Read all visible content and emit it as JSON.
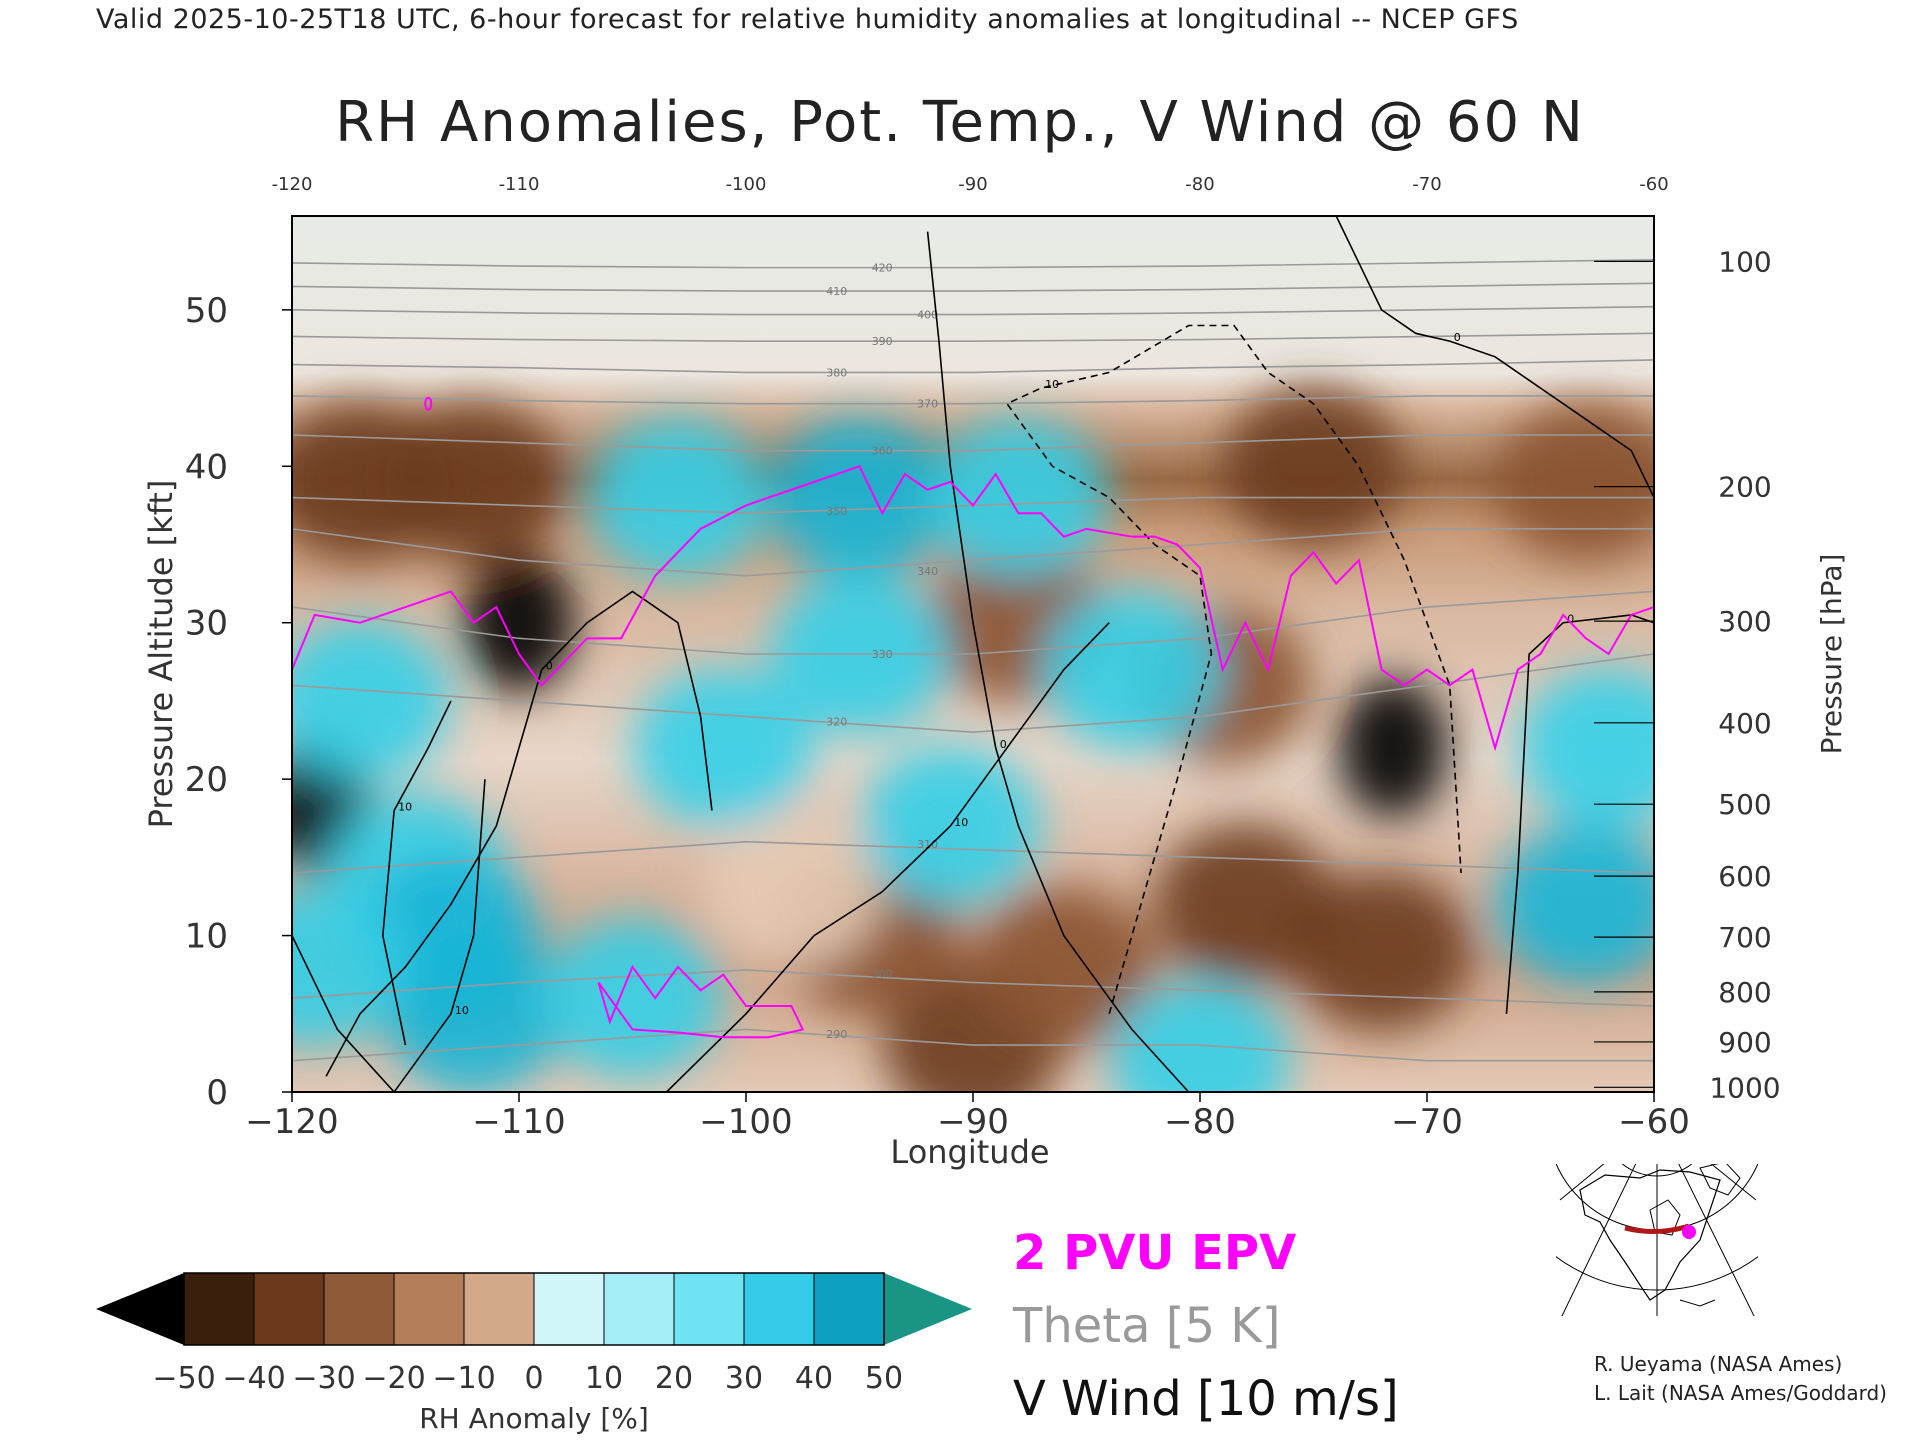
{
  "header": "Valid 2025-10-25T18 UTC, 6-hour forecast for relative humidity anomalies at longitudinal -- NCEP GFS",
  "colors": {
    "background": "#ffffff",
    "dry_strong": "#000000",
    "dry": "#8a5330",
    "dry_light": "#e6cbb5",
    "neutral": "#f2f4f1",
    "moist_light": "#b8f3fa",
    "moist": "#33cfe8",
    "moist_strong": "#0d8fac",
    "over_max": "#1a9485",
    "epv_line": "#ff00ff",
    "theta_line": "#9a9a9a",
    "wind_line": "#000000"
  },
  "chart_data": {
    "type": "heatmap",
    "title": "RH Anomalies, Pot. Temp., V Wind @ 60 N",
    "xlabel": "Longitude",
    "ylabel_left": "Pressure Altitude [kft]",
    "ylabel_right": "Pressure [hPa]",
    "xlim": [
      -120,
      -60
    ],
    "ylim": [
      0,
      56
    ],
    "x_ticks": [
      "−120",
      "−110",
      "−100",
      "−90",
      "−80",
      "−70",
      "−60"
    ],
    "top_ticks": [
      "-120",
      "-110",
      "-100",
      "-90",
      "-80",
      "-70",
      "-60"
    ],
    "top_tick_values": [
      -120,
      -110,
      -100,
      -90,
      -80,
      -70,
      -60
    ],
    "y_ticks_left": [
      "0",
      "10",
      "20",
      "30",
      "40",
      "50"
    ],
    "y_ticks_left_values": [
      0,
      10,
      20,
      30,
      40,
      50
    ],
    "y_ticks_right": [
      {
        "label": "1000",
        "kft": 0.3
      },
      {
        "label": "900",
        "kft": 3.2
      },
      {
        "label": "800",
        "kft": 6.4
      },
      {
        "label": "700",
        "kft": 9.9
      },
      {
        "label": "600",
        "kft": 13.8
      },
      {
        "label": "500",
        "kft": 18.4
      },
      {
        "label": "400",
        "kft": 23.6
      },
      {
        "label": "300",
        "kft": 30.1
      },
      {
        "label": "200",
        "kft": 38.7
      },
      {
        "label": "100",
        "kft": 53.1
      }
    ],
    "colorbar": {
      "label": "RH Anomaly [%]",
      "ticks": [
        "−50",
        "−40",
        "−30",
        "−20",
        "−10",
        "0",
        "10",
        "20",
        "30",
        "40",
        "50"
      ],
      "levels": [
        -50,
        -40,
        -30,
        -20,
        -10,
        0,
        10,
        20,
        30,
        40,
        50
      ]
    },
    "rh_anomaly_regions": [
      {
        "lon": -119,
        "kft": 18.5,
        "value": -55
      },
      {
        "lon": -110,
        "kft": 30,
        "value": -55
      },
      {
        "lon": -71.5,
        "kft": 22,
        "value": -55
      },
      {
        "lon": -112,
        "kft": 39,
        "value": -35
      },
      {
        "lon": -117,
        "kft": 39,
        "value": -30
      },
      {
        "lon": -75,
        "kft": 40,
        "value": -30
      },
      {
        "lon": -63,
        "kft": 39,
        "value": -25
      },
      {
        "lon": -90,
        "kft": 3,
        "value": -40
      },
      {
        "lon": -86,
        "kft": 8,
        "value": -28
      },
      {
        "lon": -78,
        "kft": 12,
        "value": -30
      },
      {
        "lon": -72,
        "kft": 9,
        "value": -30
      },
      {
        "lon": -88,
        "kft": 30,
        "value": -22
      },
      {
        "lon": -94.5,
        "kft": 10,
        "value": -22
      },
      {
        "lon": -79,
        "kft": 26,
        "value": -18
      },
      {
        "lon": -98,
        "kft": 13,
        "value": -12
      },
      {
        "lon": -103,
        "kft": 38,
        "value": 25
      },
      {
        "lon": -95,
        "kft": 38,
        "value": 40
      },
      {
        "lon": -88,
        "kft": 38,
        "value": 25
      },
      {
        "lon": -101,
        "kft": 22,
        "value": 22
      },
      {
        "lon": -95,
        "kft": 28,
        "value": 18
      },
      {
        "lon": -91,
        "kft": 17,
        "value": 15
      },
      {
        "lon": -114.5,
        "kft": 14,
        "value": 28
      },
      {
        "lon": -113,
        "kft": 10,
        "value": 35
      },
      {
        "lon": -112,
        "kft": 5,
        "value": 30
      },
      {
        "lon": -117,
        "kft": 25,
        "value": 25
      },
      {
        "lon": -119,
        "kft": 8,
        "value": 20
      },
      {
        "lon": -63,
        "kft": 12,
        "value": 30
      },
      {
        "lon": -62,
        "kft": 22,
        "value": 26
      },
      {
        "lon": -83,
        "kft": 27,
        "value": 12
      },
      {
        "lon": -105,
        "kft": 6,
        "value": 12
      },
      {
        "lon": -80,
        "kft": 2,
        "value": 20
      }
    ],
    "theta_contours": [
      {
        "label": "290",
        "lon": [
          -120,
          -110,
          -100,
          -90,
          -80,
          -70,
          -60
        ],
        "kft": [
          2,
          3,
          4,
          3,
          3,
          2,
          2
        ]
      },
      {
        "label": "300",
        "lon": [
          -120,
          -110,
          -100,
          -90,
          -80,
          -70,
          -60
        ],
        "kft": [
          6,
          7,
          7.8,
          7,
          6.5,
          6,
          5.5
        ]
      },
      {
        "label": "310",
        "lon": [
          -120,
          -110,
          -100,
          -90,
          -80,
          -70,
          -60
        ],
        "kft": [
          14,
          15,
          16,
          15.5,
          15,
          14.5,
          14
        ]
      },
      {
        "label": "320",
        "lon": [
          -120,
          -110,
          -100,
          -90,
          -80,
          -70,
          -60
        ],
        "kft": [
          26,
          25,
          24,
          23,
          24,
          26,
          28
        ]
      },
      {
        "label": "330",
        "lon": [
          -120,
          -110,
          -100,
          -90,
          -80,
          -70,
          -60
        ],
        "kft": [
          31,
          29,
          28,
          28,
          29,
          31,
          32
        ]
      },
      {
        "label": "340",
        "lon": [
          -120,
          -110,
          -100,
          -90,
          -80,
          -70,
          -60
        ],
        "kft": [
          36,
          34,
          33,
          34,
          35,
          36,
          36
        ]
      },
      {
        "label": "350",
        "lon": [
          -120,
          -110,
          -100,
          -90,
          -80,
          -70,
          -60
        ],
        "kft": [
          38,
          37.5,
          37,
          37.5,
          38,
          38,
          38
        ]
      },
      {
        "label": "360",
        "lon": [
          -120,
          -110,
          -100,
          -90,
          -80,
          -70,
          -60
        ],
        "kft": [
          42,
          41.5,
          41,
          41,
          41.5,
          42,
          42
        ]
      },
      {
        "label": "370",
        "lon": [
          -120,
          -110,
          -100,
          -90,
          -80,
          -70,
          -60
        ],
        "kft": [
          44.5,
          44.2,
          44,
          44,
          44.2,
          44.5,
          44.5
        ]
      },
      {
        "label": "380",
        "lon": [
          -120,
          -110,
          -100,
          -90,
          -80,
          -70,
          -60
        ],
        "kft": [
          46.5,
          46.3,
          46,
          46,
          46.3,
          46.5,
          46.8
        ]
      },
      {
        "label": "390",
        "lon": [
          -120,
          -110,
          -100,
          -90,
          -80,
          -70,
          -60
        ],
        "kft": [
          48.3,
          48.1,
          48,
          48,
          48.1,
          48.3,
          48.5
        ]
      },
      {
        "label": "400",
        "lon": [
          -120,
          -110,
          -100,
          -90,
          -80,
          -70,
          -60
        ],
        "kft": [
          50,
          49.8,
          49.7,
          49.7,
          49.8,
          50,
          50.2
        ]
      },
      {
        "label": "410",
        "lon": [
          -120,
          -110,
          -100,
          -90,
          -80,
          -70,
          -60
        ],
        "kft": [
          51.5,
          51.3,
          51.2,
          51.2,
          51.3,
          51.5,
          51.7
        ]
      },
      {
        "label": "420",
        "lon": [
          -120,
          -110,
          -100,
          -90,
          -80,
          -70,
          -60
        ],
        "kft": [
          53,
          52.8,
          52.7,
          52.7,
          52.8,
          53,
          53.2
        ]
      }
    ],
    "epv_2pvu_line": {
      "lon": [
        -120,
        -119,
        -117,
        -115,
        -113,
        -112,
        -111,
        -110,
        -109,
        -107,
        -105.5,
        -104,
        -102,
        -100,
        -98,
        -96,
        -95,
        -94,
        -93,
        -92,
        -91,
        -90,
        -89,
        -88,
        -87,
        -86,
        -85,
        -83,
        -82,
        -81,
        -80,
        -79,
        -78,
        -77,
        -76,
        -75,
        -74,
        -73,
        -72,
        -71,
        -70,
        -69,
        -68,
        -67,
        -66,
        -65,
        -64,
        -63,
        -62,
        -61,
        -60
      ],
      "kft": [
        27,
        30.5,
        30,
        31,
        32,
        30,
        31,
        28,
        26,
        29,
        29,
        33,
        36,
        37.5,
        38.5,
        39.5,
        40,
        37,
        39.5,
        38.5,
        39,
        37.5,
        39.5,
        37,
        37,
        35.5,
        36,
        35.5,
        35.5,
        35,
        33.5,
        27,
        30,
        27,
        33,
        34.5,
        32.5,
        34,
        27,
        26,
        27,
        26,
        27,
        22,
        27,
        28,
        30.5,
        29,
        28,
        30.5,
        31
      ]
    },
    "epv_low_loop": {
      "lon": [
        -106.5,
        -106,
        -105,
        -104,
        -103,
        -102,
        -101,
        -100,
        -99,
        -98,
        -97.5,
        -99,
        -101,
        -103,
        -105,
        -106.5
      ],
      "kft": [
        7,
        4.5,
        8,
        6,
        8,
        6.5,
        7.5,
        5.5,
        5.5,
        5.5,
        4,
        3.5,
        3.5,
        3.8,
        4,
        7
      ]
    },
    "epv_spot": {
      "lon": -114,
      "kft": 44
    },
    "vwind_contours": [
      {
        "label": "0",
        "style": "solid",
        "lon": [
          -118.5,
          -117,
          -115,
          -113,
          -111,
          -110,
          -109,
          -107,
          -105,
          -103,
          -102,
          -101.5
        ],
        "kft": [
          1,
          5,
          8,
          12,
          17,
          22,
          27,
          30,
          32,
          30,
          24,
          18
        ]
      },
      {
        "label": "10",
        "style": "solid",
        "lon": [
          -103.5,
          -100,
          -97,
          -94,
          -91,
          -88,
          -86,
          -84
        ],
        "kft": [
          0,
          5,
          10,
          12.8,
          17,
          23,
          27,
          30
        ]
      },
      {
        "label": "0",
        "style": "solid",
        "lon": [
          -80.5,
          -83,
          -86,
          -88,
          -89,
          -90,
          -91,
          -91.5,
          -92
        ],
        "kft": [
          0,
          4,
          10,
          17,
          22,
          30,
          40,
          48,
          55
        ]
      },
      {
        "label": "10",
        "style": "dashed",
        "lon": [
          -84,
          -83,
          -81,
          -79.5,
          -80,
          -82,
          -84,
          -86.5,
          -88.5,
          -87,
          -84,
          -80.5,
          -78.5,
          -77,
          -75,
          -73,
          -71,
          -69,
          -68.5
        ],
        "kft": [
          5,
          10,
          20,
          28,
          33,
          35,
          38,
          40,
          44,
          45,
          46,
          49,
          49,
          46,
          44,
          40,
          34,
          26,
          14
        ]
      },
      {
        "label": "0",
        "style": "solid",
        "lon": [
          -66.5,
          -66,
          -65.5,
          -64,
          -61,
          -60
        ],
        "kft": [
          5,
          14,
          28,
          30,
          30.5,
          30
        ]
      },
      {
        "label": "0",
        "style": "solid",
        "lon": [
          -74,
          -73,
          -72,
          -70.5,
          -69,
          -67,
          -64,
          -61,
          -60
        ],
        "kft": [
          56,
          53,
          50,
          48.5,
          48,
          47,
          44,
          41,
          38
        ]
      },
      {
        "label": "10",
        "style": "solid",
        "lon": [
          -120,
          -118,
          -115.5,
          -113,
          -112,
          -111.5
        ],
        "kft": [
          10,
          4,
          0,
          5,
          10,
          20
        ]
      },
      {
        "label": "10",
        "style": "solid",
        "lon": [
          -113,
          -114,
          -115.5,
          -116,
          -115
        ],
        "kft": [
          25,
          22,
          18,
          10,
          3
        ]
      }
    ]
  },
  "legend": {
    "epv_label": "2 PVU EPV",
    "theta_label": "Theta [5 K]",
    "vwind_label": "V Wind [10 m/s]"
  },
  "credits": [
    "R. Ueyama (NASA Ames)",
    "L. Lait (NASA Ames/Goddard)"
  ]
}
